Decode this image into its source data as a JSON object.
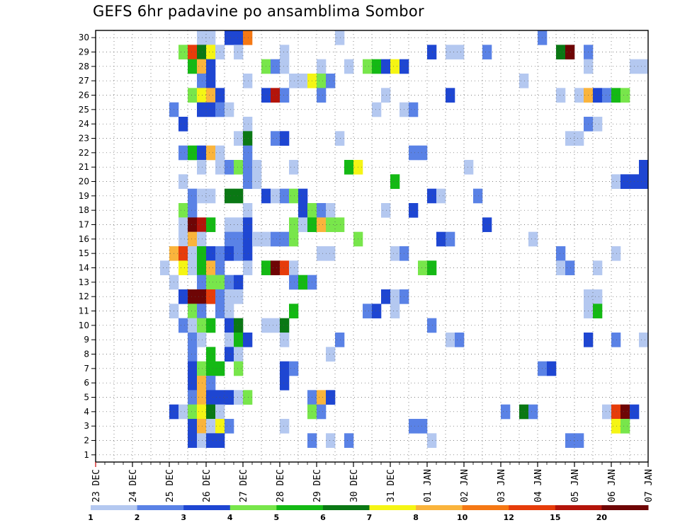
{
  "chart_data": {
    "type": "heatmap",
    "title": "GEFS 6hr padavine po ansamblima Sombor",
    "y_ticks": [
      "1",
      "2",
      "3",
      "4",
      "5",
      "6",
      "7",
      "8",
      "9",
      "10",
      "11",
      "12",
      "13",
      "14",
      "15",
      "16",
      "17",
      "18",
      "19",
      "20",
      "21",
      "22",
      "23",
      "24",
      "25",
      "26",
      "27",
      "28",
      "29",
      "30"
    ],
    "y_range": [
      0.5,
      30.5
    ],
    "x_ticks": [
      "23 DEC",
      "24 DEC",
      "25 DEC",
      "26 DEC",
      "27 DEC",
      "28 DEC",
      "29 DEC",
      "30 DEC",
      "31 DEC",
      "01 JAN",
      "02 JAN",
      "03 JAN",
      "04 JAN",
      "05 JAN",
      "06 JAN",
      "07 JAN"
    ],
    "x_unit": "6-hour step (4 per day), step 0 = 23 DEC 00Z",
    "x_range": [
      0,
      60
    ],
    "grid": true,
    "color_levels": [
      {
        "min": 1,
        "max": 2,
        "color": "#b4c8f0"
      },
      {
        "min": 2,
        "max": 3,
        "color": "#5a82e6"
      },
      {
        "min": 3,
        "max": 4,
        "color": "#1e46d2"
      },
      {
        "min": 4,
        "max": 5,
        "color": "#78e64b"
      },
      {
        "min": 5,
        "max": 6,
        "color": "#14b914"
      },
      {
        "min": 6,
        "max": 7,
        "color": "#0a7814"
      },
      {
        "min": 7,
        "max": 8,
        "color": "#f5f514"
      },
      {
        "min": 8,
        "max": 10,
        "color": "#fab43c"
      },
      {
        "min": 10,
        "max": 12,
        "color": "#f57814"
      },
      {
        "min": 12,
        "max": 15,
        "color": "#e63c0a"
      },
      {
        "min": 15,
        "max": 20,
        "color": "#b4140a"
      },
      {
        "min": 20,
        "max": null,
        "color": "#6e0505"
      }
    ],
    "colorbar_labels": [
      "1",
      "2",
      "3",
      "4",
      "5",
      "6",
      "7",
      "8",
      "10",
      "12",
      "15",
      "20"
    ],
    "cells": [
      [
        30,
        11,
        1
      ],
      [
        30,
        12,
        1
      ],
      [
        30,
        14,
        3
      ],
      [
        30,
        15,
        3
      ],
      [
        30,
        16,
        9
      ],
      [
        30,
        26,
        1
      ],
      [
        30,
        48,
        2
      ],
      [
        29,
        9,
        4
      ],
      [
        29,
        10,
        10
      ],
      [
        29,
        11,
        6
      ],
      [
        29,
        12,
        7
      ],
      [
        29,
        13,
        1
      ],
      [
        29,
        15,
        1
      ],
      [
        29,
        20,
        1
      ],
      [
        29,
        36,
        3
      ],
      [
        29,
        38,
        1
      ],
      [
        29,
        39,
        1
      ],
      [
        29,
        42,
        2
      ],
      [
        29,
        50,
        6
      ],
      [
        29,
        51,
        12
      ],
      [
        29,
        53,
        2
      ],
      [
        28,
        10,
        5
      ],
      [
        28,
        11,
        8
      ],
      [
        28,
        12,
        3
      ],
      [
        28,
        18,
        4
      ],
      [
        28,
        19,
        2
      ],
      [
        28,
        20,
        1
      ],
      [
        28,
        24,
        1
      ],
      [
        28,
        27,
        1
      ],
      [
        28,
        29,
        4
      ],
      [
        28,
        30,
        5
      ],
      [
        28,
        31,
        3
      ],
      [
        28,
        32,
        7
      ],
      [
        28,
        33,
        3
      ],
      [
        28,
        53,
        1
      ],
      [
        28,
        58,
        1
      ],
      [
        28,
        59,
        1
      ],
      [
        27,
        11,
        2
      ],
      [
        27,
        12,
        3
      ],
      [
        27,
        16,
        1
      ],
      [
        27,
        21,
        1
      ],
      [
        27,
        22,
        1
      ],
      [
        27,
        23,
        7
      ],
      [
        27,
        24,
        4
      ],
      [
        27,
        25,
        2
      ],
      [
        27,
        46,
        1
      ],
      [
        26,
        10,
        4
      ],
      [
        26,
        11,
        7
      ],
      [
        26,
        12,
        8
      ],
      [
        26,
        13,
        3
      ],
      [
        26,
        18,
        3
      ],
      [
        26,
        19,
        11
      ],
      [
        26,
        20,
        2
      ],
      [
        26,
        24,
        2
      ],
      [
        26,
        31,
        1
      ],
      [
        26,
        38,
        3
      ],
      [
        26,
        50,
        1
      ],
      [
        26,
        52,
        1
      ],
      [
        26,
        53,
        8
      ],
      [
        26,
        54,
        3
      ],
      [
        26,
        55,
        2
      ],
      [
        26,
        56,
        5
      ],
      [
        26,
        57,
        4
      ],
      [
        25,
        8,
        2
      ],
      [
        25,
        11,
        3
      ],
      [
        25,
        12,
        3
      ],
      [
        25,
        13,
        2
      ],
      [
        25,
        14,
        1
      ],
      [
        25,
        30,
        1
      ],
      [
        25,
        33,
        1
      ],
      [
        25,
        34,
        2
      ],
      [
        24,
        9,
        3
      ],
      [
        24,
        16,
        1
      ],
      [
        24,
        53,
        2
      ],
      [
        24,
        54,
        1
      ],
      [
        23,
        15,
        1
      ],
      [
        23,
        16,
        6
      ],
      [
        23,
        19,
        2
      ],
      [
        23,
        20,
        3
      ],
      [
        23,
        26,
        1
      ],
      [
        23,
        51,
        1
      ],
      [
        23,
        52,
        1
      ],
      [
        22,
        9,
        2
      ],
      [
        22,
        10,
        5
      ],
      [
        22,
        11,
        3
      ],
      [
        22,
        12,
        8
      ],
      [
        22,
        13,
        1
      ],
      [
        22,
        16,
        2
      ],
      [
        22,
        34,
        2
      ],
      [
        22,
        35,
        2
      ],
      [
        21,
        11,
        1
      ],
      [
        21,
        13,
        1
      ],
      [
        21,
        14,
        2
      ],
      [
        21,
        15,
        4
      ],
      [
        21,
        16,
        2
      ],
      [
        21,
        17,
        1
      ],
      [
        21,
        21,
        1
      ],
      [
        21,
        27,
        5
      ],
      [
        21,
        28,
        7
      ],
      [
        21,
        40,
        1
      ],
      [
        21,
        59,
        3
      ],
      [
        20,
        9,
        1
      ],
      [
        20,
        16,
        2
      ],
      [
        20,
        17,
        1
      ],
      [
        20,
        32,
        5
      ],
      [
        20,
        56,
        1
      ],
      [
        20,
        57,
        3
      ],
      [
        20,
        58,
        3
      ],
      [
        20,
        59,
        3
      ],
      [
        19,
        10,
        2
      ],
      [
        19,
        11,
        1
      ],
      [
        19,
        12,
        1
      ],
      [
        19,
        14,
        6
      ],
      [
        19,
        15,
        6
      ],
      [
        19,
        18,
        3
      ],
      [
        19,
        19,
        1
      ],
      [
        19,
        20,
        2
      ],
      [
        19,
        21,
        4
      ],
      [
        19,
        22,
        3
      ],
      [
        19,
        36,
        3
      ],
      [
        19,
        37,
        1
      ],
      [
        19,
        41,
        2
      ],
      [
        18,
        9,
        4
      ],
      [
        18,
        10,
        2
      ],
      [
        18,
        16,
        1
      ],
      [
        18,
        22,
        3
      ],
      [
        18,
        23,
        4
      ],
      [
        18,
        24,
        2
      ],
      [
        18,
        25,
        1
      ],
      [
        18,
        31,
        1
      ],
      [
        18,
        34,
        3
      ],
      [
        17,
        9,
        1
      ],
      [
        17,
        10,
        12
      ],
      [
        17,
        11,
        11
      ],
      [
        17,
        12,
        5
      ],
      [
        17,
        14,
        1
      ],
      [
        17,
        15,
        1
      ],
      [
        17,
        16,
        3
      ],
      [
        17,
        21,
        4
      ],
      [
        17,
        22,
        1
      ],
      [
        17,
        23,
        5
      ],
      [
        17,
        24,
        8
      ],
      [
        17,
        25,
        4
      ],
      [
        17,
        26,
        4
      ],
      [
        17,
        42,
        3
      ],
      [
        16,
        9,
        1
      ],
      [
        16,
        10,
        8
      ],
      [
        16,
        11,
        1
      ],
      [
        16,
        14,
        2
      ],
      [
        16,
        15,
        2
      ],
      [
        16,
        16,
        3
      ],
      [
        16,
        17,
        1
      ],
      [
        16,
        18,
        1
      ],
      [
        16,
        19,
        2
      ],
      [
        16,
        20,
        2
      ],
      [
        16,
        21,
        4
      ],
      [
        16,
        28,
        4
      ],
      [
        16,
        37,
        3
      ],
      [
        16,
        38,
        2
      ],
      [
        16,
        47,
        1
      ],
      [
        15,
        8,
        8
      ],
      [
        15,
        9,
        10
      ],
      [
        15,
        10,
        1
      ],
      [
        15,
        11,
        5
      ],
      [
        15,
        12,
        3
      ],
      [
        15,
        13,
        2
      ],
      [
        15,
        14,
        3
      ],
      [
        15,
        15,
        2
      ],
      [
        15,
        16,
        3
      ],
      [
        15,
        24,
        1
      ],
      [
        15,
        25,
        1
      ],
      [
        15,
        32,
        1
      ],
      [
        15,
        33,
        2
      ],
      [
        15,
        50,
        2
      ],
      [
        15,
        56,
        1
      ],
      [
        14,
        7,
        1
      ],
      [
        14,
        9,
        7
      ],
      [
        14,
        10,
        1
      ],
      [
        14,
        11,
        5
      ],
      [
        14,
        12,
        8
      ],
      [
        14,
        13,
        2
      ],
      [
        14,
        16,
        1
      ],
      [
        14,
        18,
        5
      ],
      [
        14,
        19,
        12
      ],
      [
        14,
        20,
        10
      ],
      [
        14,
        21,
        1
      ],
      [
        14,
        35,
        4
      ],
      [
        14,
        36,
        5
      ],
      [
        14,
        50,
        1
      ],
      [
        14,
        51,
        2
      ],
      [
        14,
        54,
        1
      ],
      [
        13,
        8,
        1
      ],
      [
        13,
        11,
        2
      ],
      [
        13,
        12,
        4
      ],
      [
        13,
        13,
        4
      ],
      [
        13,
        14,
        2
      ],
      [
        13,
        15,
        3
      ],
      [
        13,
        21,
        2
      ],
      [
        13,
        22,
        5
      ],
      [
        13,
        23,
        2
      ],
      [
        12,
        9,
        3
      ],
      [
        12,
        10,
        12
      ],
      [
        12,
        11,
        12
      ],
      [
        12,
        12,
        10
      ],
      [
        12,
        13,
        2
      ],
      [
        12,
        14,
        1
      ],
      [
        12,
        15,
        1
      ],
      [
        12,
        31,
        3
      ],
      [
        12,
        32,
        1
      ],
      [
        12,
        33,
        2
      ],
      [
        12,
        53,
        1
      ],
      [
        12,
        54,
        1
      ],
      [
        11,
        8,
        1
      ],
      [
        11,
        10,
        4
      ],
      [
        11,
        11,
        2
      ],
      [
        11,
        13,
        2
      ],
      [
        11,
        14,
        1
      ],
      [
        11,
        21,
        5
      ],
      [
        11,
        29,
        2
      ],
      [
        11,
        30,
        3
      ],
      [
        11,
        32,
        1
      ],
      [
        11,
        53,
        1
      ],
      [
        11,
        54,
        5
      ],
      [
        10,
        9,
        2
      ],
      [
        10,
        10,
        1
      ],
      [
        10,
        11,
        4
      ],
      [
        10,
        12,
        5
      ],
      [
        10,
        14,
        3
      ],
      [
        10,
        15,
        6
      ],
      [
        10,
        18,
        1
      ],
      [
        10,
        19,
        1
      ],
      [
        10,
        20,
        6
      ],
      [
        10,
        36,
        2
      ],
      [
        9,
        10,
        2
      ],
      [
        9,
        11,
        1
      ],
      [
        9,
        14,
        1
      ],
      [
        9,
        15,
        5
      ],
      [
        9,
        16,
        3
      ],
      [
        9,
        20,
        1
      ],
      [
        9,
        26,
        2
      ],
      [
        9,
        38,
        1
      ],
      [
        9,
        39,
        2
      ],
      [
        9,
        53,
        3
      ],
      [
        9,
        56,
        2
      ],
      [
        9,
        59,
        1
      ],
      [
        8,
        10,
        2
      ],
      [
        8,
        12,
        5
      ],
      [
        8,
        14,
        3
      ],
      [
        8,
        15,
        1
      ],
      [
        8,
        25,
        1
      ],
      [
        7,
        10,
        3
      ],
      [
        7,
        11,
        4
      ],
      [
        7,
        12,
        5
      ],
      [
        7,
        13,
        5
      ],
      [
        7,
        15,
        4
      ],
      [
        7,
        20,
        3
      ],
      [
        7,
        21,
        2
      ],
      [
        7,
        48,
        2
      ],
      [
        7,
        49,
        3
      ],
      [
        6,
        10,
        3
      ],
      [
        6,
        11,
        8
      ],
      [
        6,
        12,
        2
      ],
      [
        6,
        20,
        3
      ],
      [
        5,
        10,
        2
      ],
      [
        5,
        11,
        8
      ],
      [
        5,
        12,
        3
      ],
      [
        5,
        13,
        3
      ],
      [
        5,
        14,
        3
      ],
      [
        5,
        15,
        1
      ],
      [
        5,
        16,
        4
      ],
      [
        5,
        23,
        2
      ],
      [
        5,
        24,
        8
      ],
      [
        5,
        25,
        3
      ],
      [
        4,
        8,
        3
      ],
      [
        4,
        9,
        1
      ],
      [
        4,
        10,
        4
      ],
      [
        4,
        11,
        7
      ],
      [
        4,
        12,
        6
      ],
      [
        4,
        13,
        1
      ],
      [
        4,
        23,
        4
      ],
      [
        4,
        24,
        2
      ],
      [
        4,
        44,
        2
      ],
      [
        4,
        46,
        6
      ],
      [
        4,
        47,
        2
      ],
      [
        4,
        55,
        1
      ],
      [
        4,
        56,
        10
      ],
      [
        4,
        57,
        12
      ],
      [
        4,
        58,
        3
      ],
      [
        3,
        10,
        3
      ],
      [
        3,
        11,
        8
      ],
      [
        3,
        12,
        1
      ],
      [
        3,
        13,
        7
      ],
      [
        3,
        14,
        2
      ],
      [
        3,
        20,
        1
      ],
      [
        3,
        34,
        2
      ],
      [
        3,
        35,
        2
      ],
      [
        3,
        56,
        7
      ],
      [
        3,
        57,
        4
      ],
      [
        2,
        10,
        3
      ],
      [
        2,
        11,
        1
      ],
      [
        2,
        12,
        3
      ],
      [
        2,
        13,
        3
      ],
      [
        2,
        23,
        2
      ],
      [
        2,
        25,
        1
      ],
      [
        2,
        27,
        2
      ],
      [
        2,
        36,
        1
      ],
      [
        2,
        51,
        2
      ],
      [
        2,
        52,
        2
      ]
    ]
  }
}
